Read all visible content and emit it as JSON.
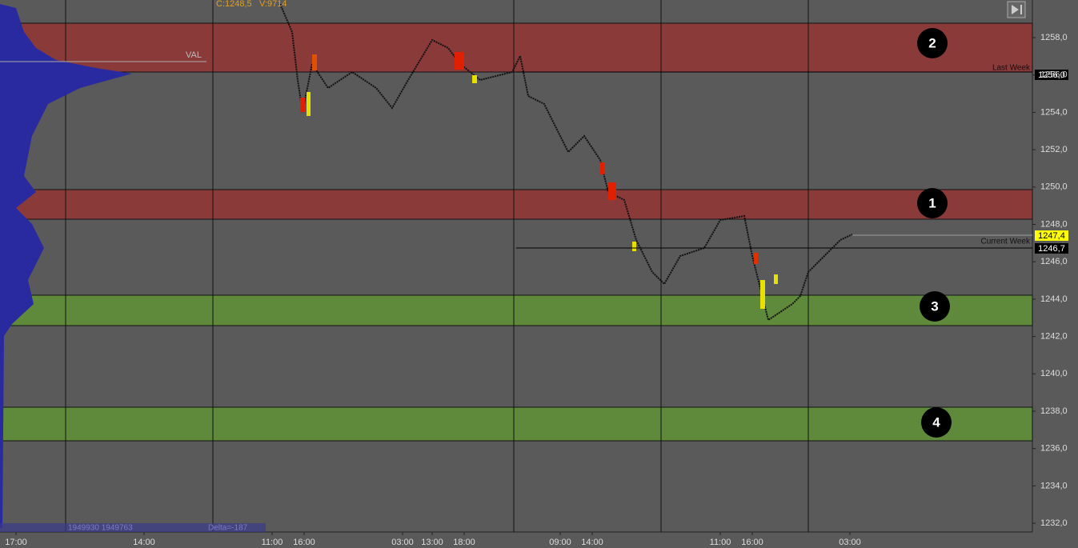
{
  "header": {
    "close": "C:1248,5",
    "volume": "V:9714"
  },
  "annotations": {
    "val": "VAL",
    "last_week": "Last Week",
    "current_week": "Current Week"
  },
  "price_tags": {
    "last_week": "1256,0",
    "last_price": "1247,4",
    "current_week": "1246,7"
  },
  "zones": [
    "1",
    "2",
    "3",
    "4"
  ],
  "y_axis": [
    "1258,0",
    "1256,0",
    "1254,0",
    "1252,0",
    "1250,0",
    "1248,0",
    "1246,0",
    "1244,0",
    "1242,0",
    "1240,0",
    "1238,0",
    "1236,0",
    "1234,0",
    "1232,0"
  ],
  "x_axis": [
    "17:00",
    "14:00",
    "11:00",
    "16:00",
    "03:00",
    "13:00",
    "18:00",
    "09:00",
    "14:00",
    "11:00",
    "16:00",
    "03:00"
  ],
  "footer": {
    "volumes": "1949930 1949763",
    "delta": "Delta=-187"
  }
}
